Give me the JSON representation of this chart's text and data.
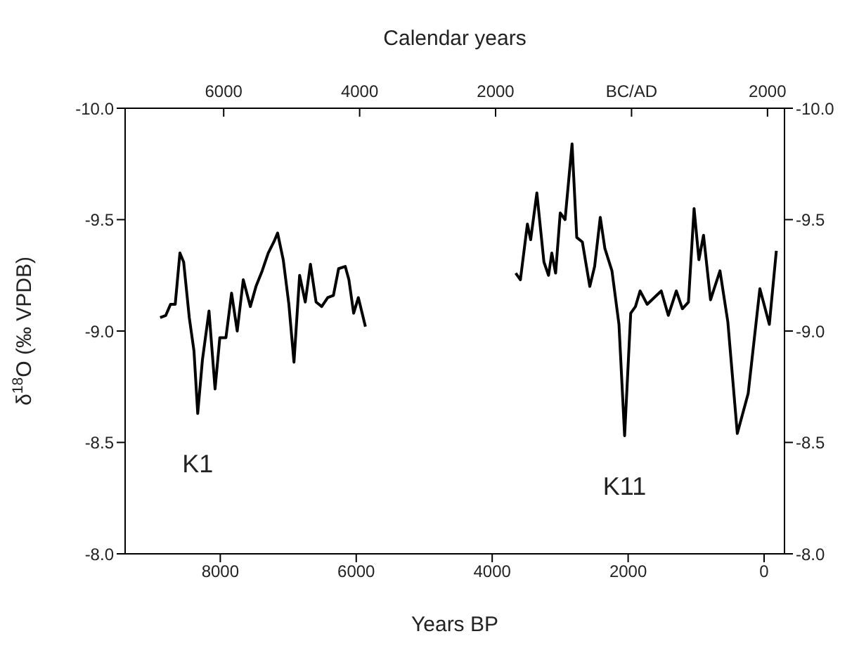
{
  "chart_data": {
    "type": "line",
    "xlabel": "Years BP",
    "x2label": "Calendar years",
    "ylabel": "δ$^{18}$O (‰ VPDB)",
    "xlim": [
      9400,
      -300
    ],
    "xticks": [
      8000,
      6000,
      4000,
      2000,
      0
    ],
    "x2lim": [
      -7450,
      2250
    ],
    "x2ticks": [
      {
        "value": -6000,
        "label": "6000"
      },
      {
        "value": -4000,
        "label": "4000"
      },
      {
        "value": -2000,
        "label": "2000"
      },
      {
        "value": 0,
        "label": "BC/AD"
      },
      {
        "value": 2000,
        "label": "2000"
      }
    ],
    "ylim": [
      -8,
      -10
    ],
    "yticks": [
      {
        "value": -8,
        "label": "-8.0"
      },
      {
        "value": -8.5,
        "label": "-8.5"
      },
      {
        "value": -9,
        "label": "-9.0"
      },
      {
        "value": -9.5,
        "label": "-9.5"
      },
      {
        "value": -10,
        "label": "-10.0"
      }
    ],
    "y2lim": [
      -8,
      -10
    ],
    "y2ticks": [
      {
        "value": -8,
        "label": "-8.0"
      },
      {
        "value": -8.5,
        "label": "-8.5"
      },
      {
        "value": -9,
        "label": "-9.0"
      },
      {
        "value": -9.5,
        "label": "-9.5"
      },
      {
        "value": -10,
        "label": "-10.0"
      }
    ],
    "grid": false,
    "legend": false,
    "marker": "none",
    "line_style": "solid",
    "series": [
      {
        "name": "K1",
        "color": "#000000",
        "x": [
          8885,
          8802,
          8732,
          8663,
          8594,
          8539,
          8456,
          8387,
          8332,
          8263,
          8166,
          8077,
          8007,
          7917,
          7834,
          7751,
          7662,
          7558,
          7475,
          7384,
          7295,
          7212,
          7157,
          7074,
          6991,
          6916,
          6833,
          6750,
          6674,
          6591,
          6508,
          6419,
          6336,
          6259,
          6162,
          6108,
          6038,
          5969,
          5865
        ],
        "values": [
          -9.06,
          -9.07,
          -9.12,
          -9.12,
          -9.35,
          -9.31,
          -9.06,
          -8.91,
          -8.63,
          -8.87,
          -9.09,
          -8.74,
          -8.97,
          -8.97,
          -9.17,
          -9.0,
          -9.23,
          -9.11,
          -9.2,
          -9.27,
          -9.35,
          -9.4,
          -9.44,
          -9.32,
          -9.12,
          -8.86,
          -9.25,
          -9.13,
          -9.3,
          -9.13,
          -9.11,
          -9.15,
          -9.16,
          -9.28,
          -9.29,
          -9.23,
          -9.08,
          -9.15,
          -9.02
        ]
      },
      {
        "name": "K11",
        "color": "#000000",
        "x": [
          3654,
          3585,
          3482,
          3434,
          3343,
          3239,
          3171,
          3123,
          3067,
          2999,
          2928,
          2825,
          2756,
          2674,
          2564,
          2493,
          2410,
          2342,
          2238,
          2135,
          2052,
          1962,
          1892,
          1824,
          1720,
          1617,
          1513,
          1409,
          1291,
          1202,
          1113,
          1030,
          959,
          891,
          788,
          649,
          533,
          394,
          234,
          62,
          -77,
          -180
        ],
        "values": [
          -9.26,
          -9.23,
          -9.48,
          -9.41,
          -9.62,
          -9.31,
          -9.25,
          -9.35,
          -9.26,
          -9.53,
          -9.5,
          -9.84,
          -9.42,
          -9.4,
          -9.2,
          -9.29,
          -9.51,
          -9.37,
          -9.27,
          -9.03,
          -8.53,
          -9.08,
          -9.11,
          -9.18,
          -9.12,
          -9.15,
          -9.18,
          -9.07,
          -9.18,
          -9.1,
          -9.13,
          -9.55,
          -9.32,
          -9.43,
          -9.14,
          -9.27,
          -9.04,
          -8.54,
          -8.72,
          -9.19,
          -9.03,
          -9.36
        ]
      }
    ]
  }
}
